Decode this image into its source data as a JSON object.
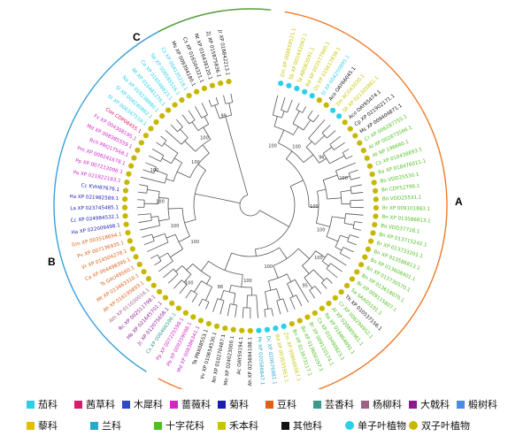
{
  "clade_labels": {
    "a": "A",
    "b": "B",
    "c": "C"
  },
  "colors": {
    "clade_a": "#f07a2a",
    "clade_b": "#3a9fd8",
    "clade_c": "#5a9e2e",
    "monocot_dot": "#2ad0e8",
    "dicot_dot": "#c6b800"
  },
  "bootstrap": [
    "100",
    "100",
    "96",
    "100",
    "100",
    "100",
    "100",
    "95",
    "100",
    "100",
    "86",
    "100",
    "100",
    "100",
    "100",
    "100",
    "100",
    "100",
    "99"
  ],
  "leaves": [
    {
      "label": "Zm XP 008659521.1",
      "group": "禾本科"
    },
    {
      "label": "Sb XP 002442062.1",
      "group": "禾本科"
    },
    {
      "label": "Ta ABQ63591.1",
      "group": "禾本科"
    },
    {
      "label": "Bd XP 003577940.1",
      "group": "禾本科"
    },
    {
      "label": "Os XP 015617838.1",
      "group": "禾本科"
    },
    {
      "label": "Sl XP 004250895.1",
      "group": "茄科"
    },
    {
      "label": "Aco OAY66045.1",
      "group": "其他科"
    },
    {
      "label": "Zm ACG43030.1",
      "group": "禾本科"
    },
    {
      "label": "Sb XP 021305881.1",
      "group": "禾本科"
    },
    {
      "label": "Aco OAY65474.1",
      "group": "其他科"
    },
    {
      "label": "Cp XP 021902171.1",
      "group": "其他科"
    },
    {
      "label": "Ms XP 009404871.1",
      "group": "其他科"
    },
    {
      "label": "Cr XP 006287755.1",
      "group": "十字花科"
    },
    {
      "label": "Al XP 002873566.1",
      "group": "十字花科"
    },
    {
      "label": "At NP 196660.1",
      "group": "十字花科"
    },
    {
      "label": "Cs XP 010438893.1",
      "group": "十字花科"
    },
    {
      "label": "Ra XP 018476011.1",
      "group": "十字花科"
    },
    {
      "label": "Bo VDD25530.1",
      "group": "十字花科"
    },
    {
      "label": "Bn CDY52796.1",
      "group": "十字花科"
    },
    {
      "label": "Bo VDD25531.1",
      "group": "十字花科"
    },
    {
      "label": "Br XP 009101883.1",
      "group": "十字花科"
    },
    {
      "label": "Bn XP 013586813.1",
      "group": "十字花科"
    },
    {
      "label": "Bo VDD37718.1",
      "group": "十字花科"
    },
    {
      "label": "Bn XP 013715242.1",
      "group": "十字花科"
    },
    {
      "label": "Br XP 013733201.1",
      "group": "十字花科"
    },
    {
      "label": "Bn XP 013586813.1",
      "group": "十字花科"
    },
    {
      "label": "Bo XP 013608401.1",
      "group": "十字花科"
    },
    {
      "label": "Bn XP 013730570.1",
      "group": "十字花科"
    },
    {
      "label": "Bn XP 013618070.1",
      "group": "十字花科"
    },
    {
      "label": "Br XP 009115807.1",
      "group": "十字花科"
    },
    {
      "label": "Sa SAA05191.1",
      "group": "十字花科"
    },
    {
      "label": "Th XP 010537156.1",
      "group": "其他科"
    },
    {
      "label": "Cr XP 006294952.1",
      "group": "十字花科"
    },
    {
      "label": "Al XP 020885961.1",
      "group": "十字花科"
    },
    {
      "label": "Ra XP 018464891.1",
      "group": "十字花科"
    },
    {
      "label": "Cs XP 010490823.1",
      "group": "十字花科"
    },
    {
      "label": "Br XP 009110174.1",
      "group": "十字花科"
    },
    {
      "label": "Bo XP 013600297.1",
      "group": "十字花科"
    },
    {
      "label": "Bn XP 013673117.1",
      "group": "十字花科"
    },
    {
      "label": "Zm XP 008666567.1",
      "group": "禾本科"
    },
    {
      "label": "Bd XP 003555951.1",
      "group": "禾本科"
    },
    {
      "label": "Dc XP 020676981.1",
      "group": "兰科"
    },
    {
      "label": "Pe XP 020586847.1",
      "group": "兰科"
    },
    {
      "label": "Ah XP 025694108.1",
      "group": "其他科"
    },
    {
      "label": "Ac OAY59194.1",
      "group": "其他科"
    },
    {
      "label": "Mn XP 024023000.1",
      "group": "其他科"
    },
    {
      "label": "Nn XP 010270487.1",
      "group": "其他科"
    },
    {
      "label": "Vv XP 010654530.1",
      "group": "其他科"
    },
    {
      "label": "Ta PNX08553.1",
      "group": "其他科"
    },
    {
      "label": "Md XP 008386341.1",
      "group": "蔷薇科"
    },
    {
      "label": "Pb XP 009359098.1",
      "group": "蔷薇科"
    },
    {
      "label": "Pp XP 007225598.1",
      "group": "蔷薇科"
    },
    {
      "label": "Cs XP 006466596.1",
      "group": "芸香科"
    },
    {
      "label": "Jc XP 012075658.1",
      "group": "大戟科"
    },
    {
      "label": "Hb XP 021645701.1",
      "group": "大戟科"
    },
    {
      "label": "Rc XP 002511798.1",
      "group": "大戟科"
    },
    {
      "label": "Ath XP 011030016.1",
      "group": "杨柳科"
    },
    {
      "label": "Ah XP 016195893.1",
      "group": "豆科"
    },
    {
      "label": "Mt XP 013463310.1",
      "group": "豆科"
    },
    {
      "label": "Ts GAU49560.1",
      "group": "豆科"
    },
    {
      "label": "Ca XP 004498395.1",
      "group": "豆科"
    },
    {
      "label": "Vr XP 014504278.1",
      "group": "豆科"
    },
    {
      "label": "Pv XP 007136935.1",
      "group": "豆科"
    },
    {
      "label": "Gm XP 003518694.1",
      "group": "豆科"
    },
    {
      "label": "Ha XP 022009498.1",
      "group": "菊科"
    },
    {
      "label": "Cc XP 024984532.1",
      "group": "菊科"
    },
    {
      "label": "La XP 023745485.1",
      "group": "菊科"
    },
    {
      "label": "Ha XP 021982589.1",
      "group": "菊科"
    },
    {
      "label": "Cc KVH87676.1",
      "group": "菊科"
    },
    {
      "label": "Pa XP 021822183.1",
      "group": "蔷薇科"
    },
    {
      "label": "Pp XP 007212006.1",
      "group": "蔷薇科"
    },
    {
      "label": "Pm XP 008241678.1",
      "group": "蔷薇科"
    },
    {
      "label": "Rch PRQ17568.1",
      "group": "蔷薇科"
    },
    {
      "label": "Md XP 008385559.1",
      "group": "蔷薇科"
    },
    {
      "label": "Fv XP 004308195.1",
      "group": "蔷薇科"
    },
    {
      "label": "Coe CDP08455.1",
      "group": "茜草科"
    },
    {
      "label": "St XP 006347519.1",
      "group": "茄科"
    },
    {
      "label": "Sl XP 004240862.1",
      "group": "茄科"
    },
    {
      "label": "Na XP 019238990.1",
      "group": "茄科"
    },
    {
      "label": "Nt XP 016481276.1",
      "group": "茄科"
    },
    {
      "label": "Ca XP 016546823.1",
      "group": "茄科"
    },
    {
      "label": "Sp XP 006585516.1",
      "group": "茄科"
    },
    {
      "label": "Cs XP 004135218.1",
      "group": "茄科"
    },
    {
      "label": "Ms XP 009394180.1",
      "group": "其他科"
    },
    {
      "label": "Cs XP 016504321.1",
      "group": "其他科"
    },
    {
      "label": "Nt XP 016438120.1",
      "group": "其他科"
    },
    {
      "label": "Zj XP 015875836.1",
      "group": "其他科"
    },
    {
      "label": "Jr XP 018842213.1",
      "group": "其他科"
    }
  ],
  "legend": [
    {
      "label": "茄科",
      "color": "#2ad0e8",
      "shape": "square"
    },
    {
      "label": "茜草科",
      "color": "#e0186a",
      "shape": "square"
    },
    {
      "label": "木犀科",
      "color": "#3048c8",
      "shape": "square"
    },
    {
      "label": "蔷薇科",
      "color": "#d028c8",
      "shape": "square"
    },
    {
      "label": "菊科",
      "color": "#1c1cb4",
      "shape": "square"
    },
    {
      "label": "豆科",
      "color": "#e06018",
      "shape": "square"
    },
    {
      "label": "芸香科",
      "color": "#3c9a8c",
      "shape": "square"
    },
    {
      "label": "杨柳科",
      "color": "#a06088",
      "shape": "square"
    },
    {
      "label": "大戟科",
      "color": "#8c1c8c",
      "shape": "square"
    },
    {
      "label": "椴树科",
      "color": "#4a8ae0",
      "shape": "square"
    },
    {
      "label": "藜科",
      "color": "#e0c000",
      "shape": "square"
    },
    {
      "label": "兰科",
      "color": "#2aa8c8",
      "shape": "square"
    },
    {
      "label": "十字花科",
      "color": "#50c020",
      "shape": "square"
    },
    {
      "label": "禾本科",
      "color": "#c6c600",
      "shape": "square"
    },
    {
      "label": "其他科",
      "color": "#111111",
      "shape": "square"
    },
    {
      "label": "单子叶植物",
      "color": "#2ad0e8",
      "shape": "dot"
    },
    {
      "label": "双子叶植物",
      "color": "#c6b800",
      "shape": "dot"
    }
  ]
}
